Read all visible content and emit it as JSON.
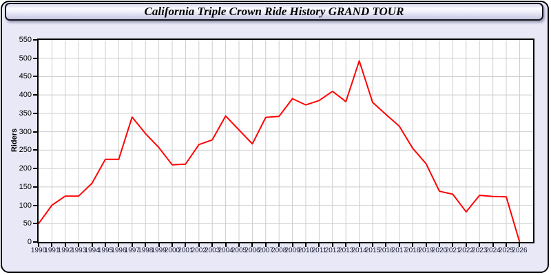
{
  "window": {
    "bg": "#E8E8F7",
    "border_color": "#000000"
  },
  "header": {
    "title": "California Triple Crown Ride History GRAND TOUR"
  },
  "chart_data": {
    "type": "line",
    "title": "California Triple Crown Ride History GRAND TOUR",
    "xlabel": "",
    "ylabel": "Riders",
    "x": [
      1990,
      1991,
      1992,
      1993,
      1994,
      1995,
      1996,
      1997,
      1998,
      1999,
      2000,
      2001,
      2002,
      2003,
      2004,
      2005,
      2006,
      2007,
      2008,
      2009,
      2010,
      2011,
      2012,
      2013,
      2014,
      2015,
      2016,
      2017,
      2018,
      2019,
      2020,
      2021,
      2022,
      2023,
      2024,
      2025,
      2026
    ],
    "series": [
      {
        "name": "Riders",
        "color": "#FF0000",
        "values": [
          50,
          100,
          125,
          125,
          160,
          225,
          225,
          340,
          295,
          257,
          210,
          212,
          265,
          278,
          343,
          305,
          267,
          339,
          342,
          390,
          373,
          385,
          410,
          382,
          493,
          380,
          347,
          315,
          255,
          213,
          138,
          130,
          82,
          127,
          124,
          123,
          0
        ]
      }
    ],
    "ylim": [
      0,
      550
    ],
    "ytick_step": 50,
    "grid": true,
    "grid_color": "#CCCCCC",
    "plot_bg": "#FFFFFF",
    "legend": "none"
  }
}
